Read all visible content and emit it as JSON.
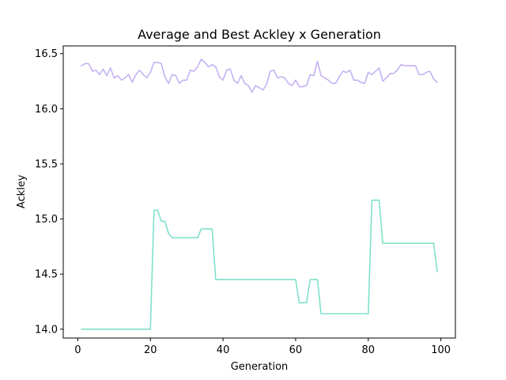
{
  "chart_data": {
    "type": "line",
    "title": "Average and Best Ackley x Generation",
    "xlabel": "Generation",
    "ylabel": "Ackley",
    "xlim": [
      -4,
      104
    ],
    "ylim": [
      13.92,
      16.57
    ],
    "xticks": [
      0,
      20,
      40,
      60,
      80,
      100
    ],
    "yticks": [
      14.0,
      14.5,
      15.0,
      15.5,
      16.0,
      16.5
    ],
    "ytick_labels": [
      "14.0",
      "14.5",
      "15.0",
      "15.5",
      "16.0",
      "16.5"
    ],
    "grid": false,
    "series": [
      {
        "color": "#c5b2f2",
        "x": [
          1,
          2,
          3,
          4,
          5,
          6,
          7,
          8,
          9,
          10,
          11,
          12,
          13,
          14,
          15,
          16,
          17,
          18,
          19,
          20,
          21,
          22,
          23,
          24,
          25,
          26,
          27,
          28,
          29,
          30,
          31,
          32,
          33,
          34,
          35,
          36,
          37,
          38,
          39,
          40,
          41,
          42,
          43,
          44,
          45,
          46,
          47,
          48,
          49,
          50,
          51,
          52,
          53,
          54,
          55,
          56,
          57,
          58,
          59,
          60,
          61,
          62,
          63,
          64,
          65,
          66,
          67,
          68,
          69,
          70,
          71,
          72,
          73,
          74,
          75,
          76,
          77,
          78,
          79,
          80,
          81,
          82,
          83,
          84,
          85,
          86,
          87,
          88,
          89,
          90,
          91,
          92,
          93,
          94,
          95,
          96,
          97,
          98,
          99
        ],
        "y": [
          16.39,
          16.41,
          16.41,
          16.34,
          16.35,
          16.31,
          16.36,
          16.3,
          16.37,
          16.28,
          16.3,
          16.26,
          16.28,
          16.31,
          16.24,
          16.31,
          16.35,
          16.31,
          16.28,
          16.33,
          16.42,
          16.42,
          16.41,
          16.29,
          16.23,
          16.31,
          16.3,
          16.23,
          16.26,
          16.26,
          16.35,
          16.34,
          16.38,
          16.45,
          16.42,
          16.38,
          16.4,
          16.38,
          16.29,
          16.26,
          16.35,
          16.36,
          16.26,
          16.23,
          16.3,
          16.23,
          16.21,
          16.15,
          16.21,
          16.19,
          16.17,
          16.22,
          16.34,
          16.35,
          16.28,
          16.29,
          16.28,
          16.23,
          16.21,
          16.26,
          16.2,
          16.2,
          16.21,
          16.31,
          16.3,
          16.43,
          16.3,
          16.28,
          16.26,
          16.23,
          16.23,
          16.29,
          16.34,
          16.33,
          16.35,
          16.26,
          16.26,
          16.24,
          16.23,
          16.33,
          16.31,
          16.34,
          16.37,
          16.25,
          16.28,
          16.32,
          16.32,
          16.35,
          16.4,
          16.39,
          16.39,
          16.39,
          16.39,
          16.31,
          16.31,
          16.33,
          16.34,
          16.27,
          16.24
        ]
      },
      {
        "color": "#7fe0cb",
        "x": [
          1,
          2,
          3,
          4,
          5,
          6,
          7,
          8,
          9,
          10,
          11,
          12,
          13,
          14,
          15,
          16,
          17,
          18,
          19,
          20,
          21,
          22,
          23,
          24,
          25,
          26,
          27,
          28,
          29,
          30,
          31,
          32,
          33,
          34,
          35,
          36,
          37,
          38,
          39,
          40,
          41,
          42,
          43,
          44,
          45,
          46,
          47,
          48,
          49,
          50,
          51,
          52,
          53,
          54,
          55,
          56,
          57,
          58,
          59,
          60,
          61,
          62,
          63,
          64,
          65,
          66,
          67,
          68,
          69,
          70,
          71,
          72,
          73,
          74,
          75,
          76,
          77,
          78,
          79,
          80,
          81,
          82,
          83,
          84,
          85,
          86,
          87,
          88,
          89,
          90,
          91,
          92,
          93,
          94,
          95,
          96,
          97,
          98,
          99
        ],
        "y": [
          14.0,
          14.0,
          14.0,
          14.0,
          14.0,
          14.0,
          14.0,
          14.0,
          14.0,
          14.0,
          14.0,
          14.0,
          14.0,
          14.0,
          14.0,
          14.0,
          14.0,
          14.0,
          14.0,
          14.0,
          15.08,
          15.08,
          14.98,
          14.98,
          14.87,
          14.83,
          14.83,
          14.83,
          14.83,
          14.83,
          14.83,
          14.83,
          14.83,
          14.91,
          14.91,
          14.91,
          14.91,
          14.45,
          14.45,
          14.45,
          14.45,
          14.45,
          14.45,
          14.45,
          14.45,
          14.45,
          14.45,
          14.45,
          14.45,
          14.45,
          14.45,
          14.45,
          14.45,
          14.45,
          14.45,
          14.45,
          14.45,
          14.45,
          14.45,
          14.45,
          14.24,
          14.24,
          14.24,
          14.45,
          14.45,
          14.45,
          14.14,
          14.14,
          14.14,
          14.14,
          14.14,
          14.14,
          14.14,
          14.14,
          14.14,
          14.14,
          14.14,
          14.14,
          14.14,
          14.14,
          15.17,
          15.17,
          15.17,
          14.78,
          14.78,
          14.78,
          14.78,
          14.78,
          14.78,
          14.78,
          14.78,
          14.78,
          14.78,
          14.78,
          14.78,
          14.78,
          14.78,
          14.78,
          14.52
        ]
      }
    ]
  }
}
